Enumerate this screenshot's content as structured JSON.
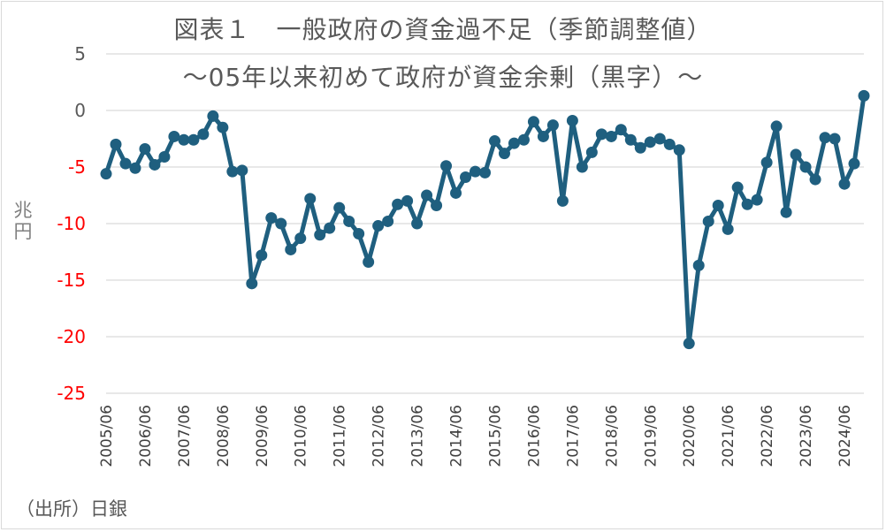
{
  "chart_data": {
    "type": "line",
    "title": "図表１　一般政府の資金過不足（季節調整値）",
    "subtitle": "～05年以来初めて政府が資金余剰（黒字）～",
    "ylabel": "兆円",
    "xlabel": "",
    "ylim": [
      -25,
      5
    ],
    "yticks": [
      5,
      0,
      -5,
      -10,
      -15,
      -20,
      -25
    ],
    "grid": true,
    "legend": "none",
    "x_tick_labels": [
      "2005/06",
      "2006/06",
      "2007/06",
      "2008/06",
      "2009/06",
      "2010/06",
      "2011/06",
      "2012/06",
      "2013/06",
      "2014/06",
      "2015/06",
      "2016/06",
      "2017/06",
      "2018/06",
      "2019/06",
      "2020/06",
      "2021/06",
      "2022/06",
      "2023/06",
      "2024/06"
    ],
    "series": [
      {
        "name": "",
        "color": "#1f5f7f",
        "values": [
          -5.6,
          -3.0,
          -4.7,
          -5.1,
          -3.4,
          -4.8,
          -4.1,
          -2.3,
          -2.6,
          -2.6,
          -2.1,
          -0.5,
          -1.5,
          -5.4,
          -5.3,
          -15.3,
          -12.8,
          -9.5,
          -10.0,
          -12.3,
          -11.3,
          -7.8,
          -11.0,
          -10.4,
          -8.6,
          -9.8,
          -10.9,
          -13.4,
          -10.2,
          -9.8,
          -8.3,
          -8.0,
          -10.0,
          -7.5,
          -8.4,
          -4.9,
          -7.3,
          -5.9,
          -5.4,
          -5.5,
          -2.7,
          -3.8,
          -2.9,
          -2.6,
          -1.0,
          -2.3,
          -1.3,
          -8.0,
          -0.9,
          -5.0,
          -3.7,
          -2.1,
          -2.3,
          -1.7,
          -2.6,
          -3.3,
          -2.8,
          -2.5,
          -3.0,
          -3.5,
          -20.6,
          -13.7,
          -9.8,
          -8.4,
          -10.5,
          -6.8,
          -8.3,
          -7.9,
          -4.6,
          -1.4,
          -9.0,
          -3.9,
          -5.0,
          -6.1,
          -2.4,
          -2.5,
          -6.5,
          -4.7,
          1.3
        ]
      }
    ]
  },
  "source": "（出所）日銀"
}
